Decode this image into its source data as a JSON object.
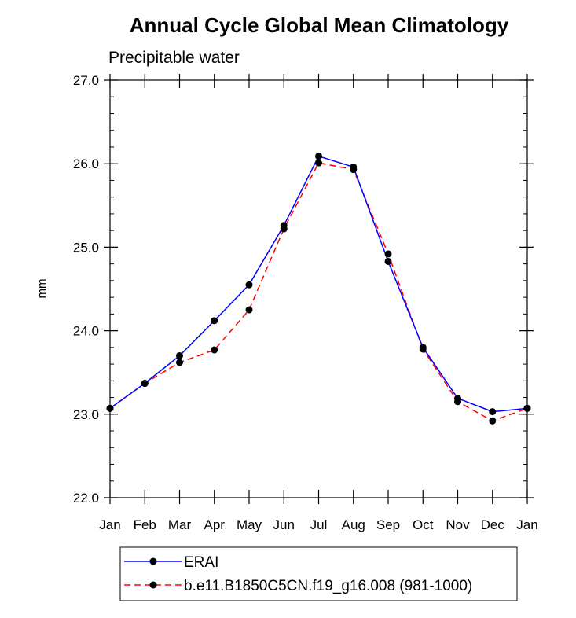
{
  "chart_data": {
    "type": "line",
    "title": "Annual Cycle Global Mean Climatology",
    "subtitle": "Precipitable water",
    "xlabel": "",
    "ylabel": "mm",
    "ylim": [
      22.0,
      27.0
    ],
    "y_ticks": [
      "22.0",
      "23.0",
      "24.0",
      "25.0",
      "26.0",
      "27.0"
    ],
    "categories": [
      "Jan",
      "Feb",
      "Mar",
      "Apr",
      "May",
      "Jun",
      "Jul",
      "Aug",
      "Sep",
      "Oct",
      "Nov",
      "Dec",
      "Jan"
    ],
    "series": [
      {
        "name": "ERAI",
        "color": "#0000ff",
        "line_style": "solid",
        "values": [
          23.07,
          23.37,
          23.7,
          24.12,
          24.55,
          25.26,
          26.09,
          25.96,
          24.83,
          23.8,
          23.19,
          23.03,
          23.07
        ]
      },
      {
        "name": "b.e11.B1850C5CN.f19_g16.008 (981-1000)",
        "color": "#ff0000",
        "line_style": "dashed",
        "values": [
          23.07,
          23.37,
          23.62,
          23.77,
          24.25,
          25.22,
          26.01,
          25.93,
          24.92,
          23.78,
          23.15,
          22.92,
          23.07
        ]
      }
    ],
    "legend_position": "bottom"
  }
}
